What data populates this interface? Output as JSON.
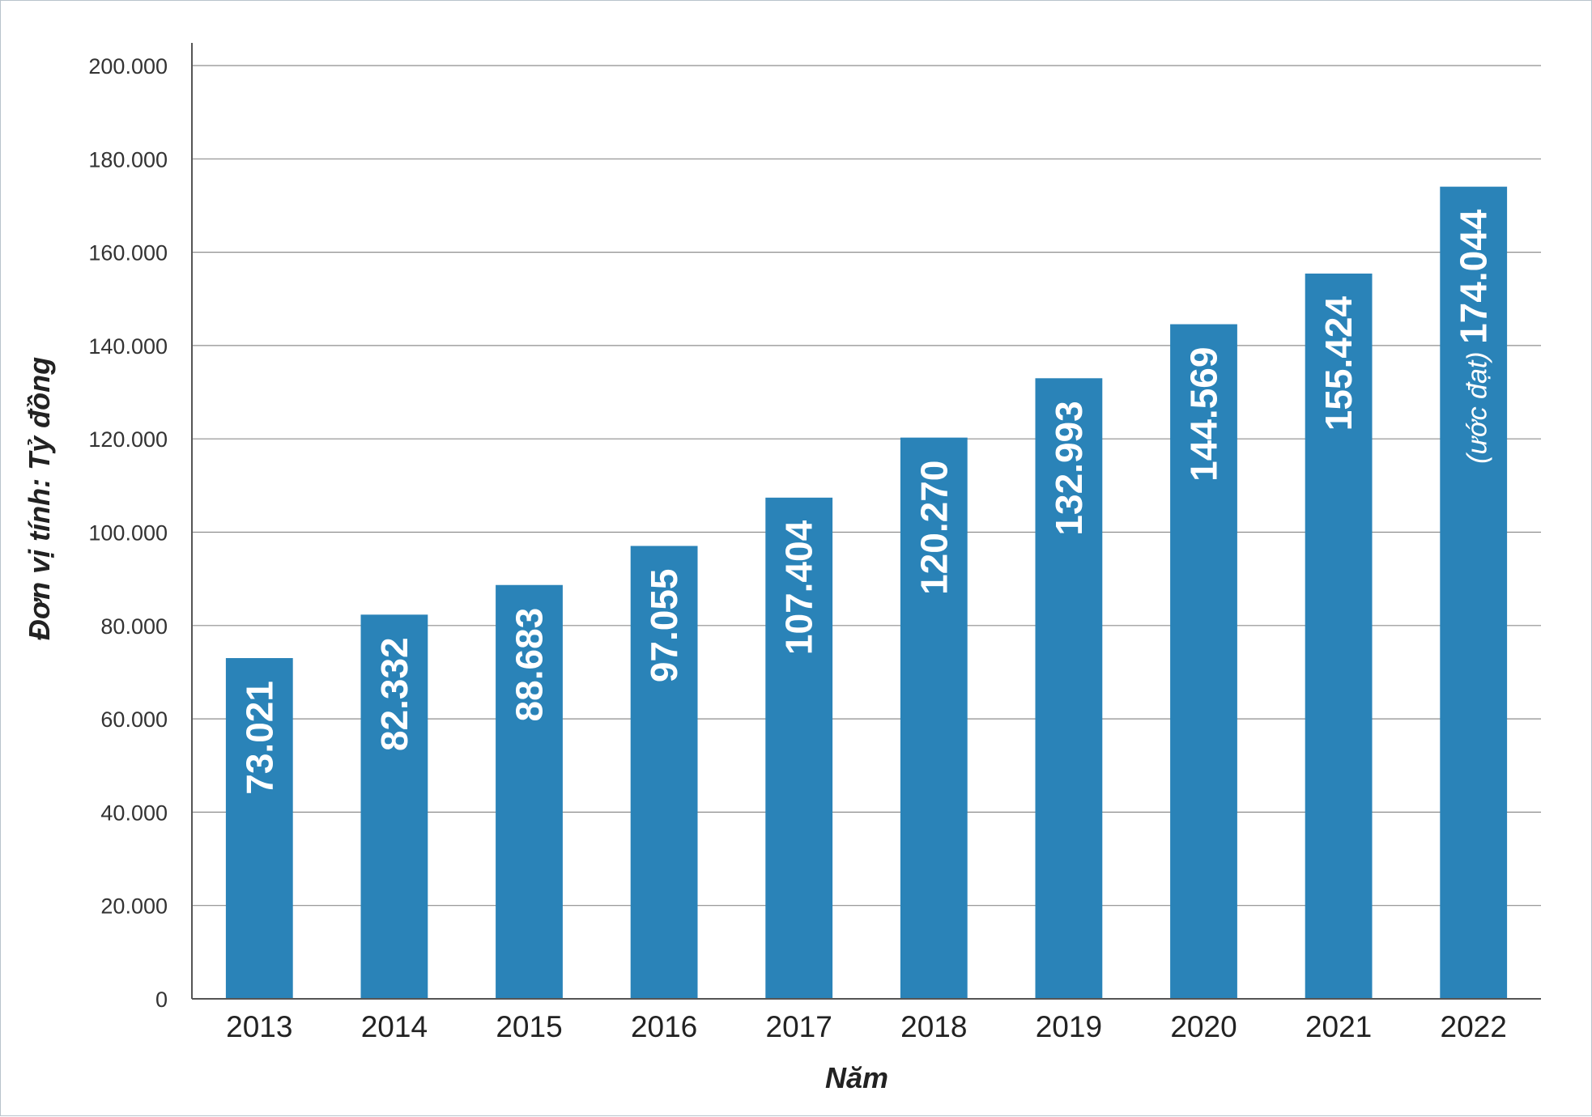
{
  "chart_data": {
    "type": "bar",
    "categories": [
      "2013",
      "2014",
      "2015",
      "2016",
      "2017",
      "2018",
      "2019",
      "2020",
      "2021",
      "2022"
    ],
    "values": [
      73021,
      82332,
      88683,
      97055,
      107404,
      120270,
      132993,
      144569,
      155424,
      174044
    ],
    "value_labels": [
      "73.021",
      "82.332",
      "88.683",
      "97.055",
      "107.404",
      "120.270",
      "132.993",
      "144.569",
      "155.424",
      "174.044"
    ],
    "value_notes": [
      "",
      "",
      "",
      "",
      "",
      "",
      "",
      "",
      "",
      "(ước đạt)"
    ],
    "ylabel": "Đơn vị tính: Tỷ đồng",
    "xlabel": "Năm",
    "ylim": [
      0,
      200000
    ],
    "yticks": [
      0,
      20000,
      40000,
      60000,
      80000,
      100000,
      120000,
      140000,
      160000,
      180000,
      200000
    ],
    "ytick_labels": [
      "0",
      "20.000",
      "40.000",
      "60.000",
      "80.000",
      "100.000",
      "120.000",
      "140.000",
      "160.000",
      "180.000",
      "200.000"
    ],
    "grid": true,
    "bar_color": "#2a83b8"
  }
}
